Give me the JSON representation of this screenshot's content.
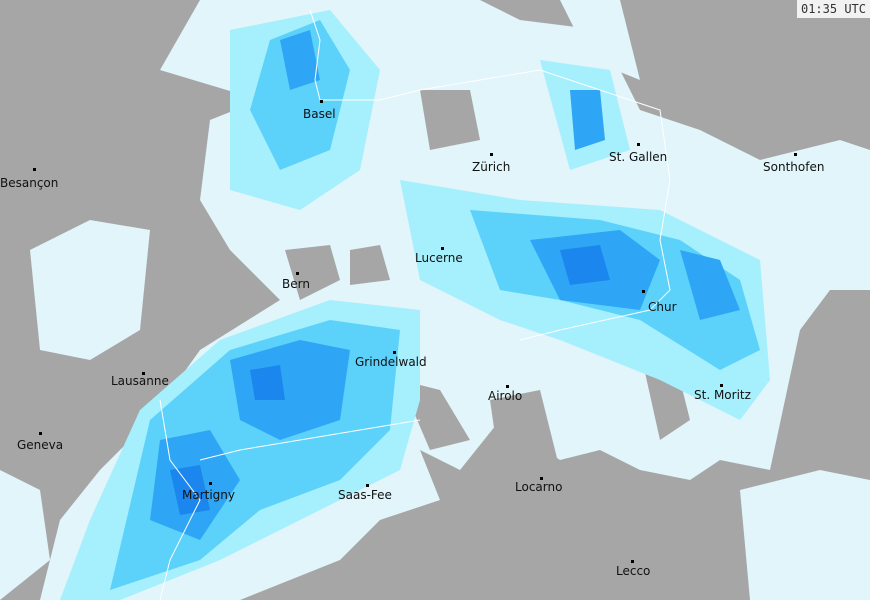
{
  "timestamp": "01:35 UTC",
  "colors": {
    "land": "#a6a6a6",
    "lake": "#b8b8b8",
    "precip_light": "#e1f5fb",
    "precip_low": "#a6effd",
    "precip_mid": "#5cd2fb",
    "precip_high": "#2ea6f5",
    "precip_heavy": "#1a86ee",
    "border": "#ffffff"
  },
  "cities": [
    {
      "name": "Basel"
    },
    {
      "name": "Zürich"
    },
    {
      "name": "St. Gallen"
    },
    {
      "name": "Sonthofen"
    },
    {
      "name": "Besançon"
    },
    {
      "name": "Lucerne"
    },
    {
      "name": "Bern"
    },
    {
      "name": "Chur"
    },
    {
      "name": "Grindelwald"
    },
    {
      "name": "Lausanne"
    },
    {
      "name": "Airolo"
    },
    {
      "name": "St. Moritz"
    },
    {
      "name": "Geneva"
    },
    {
      "name": "Martigny"
    },
    {
      "name": "Saas-Fee"
    },
    {
      "name": "Locarno"
    },
    {
      "name": "Lecco"
    }
  ]
}
